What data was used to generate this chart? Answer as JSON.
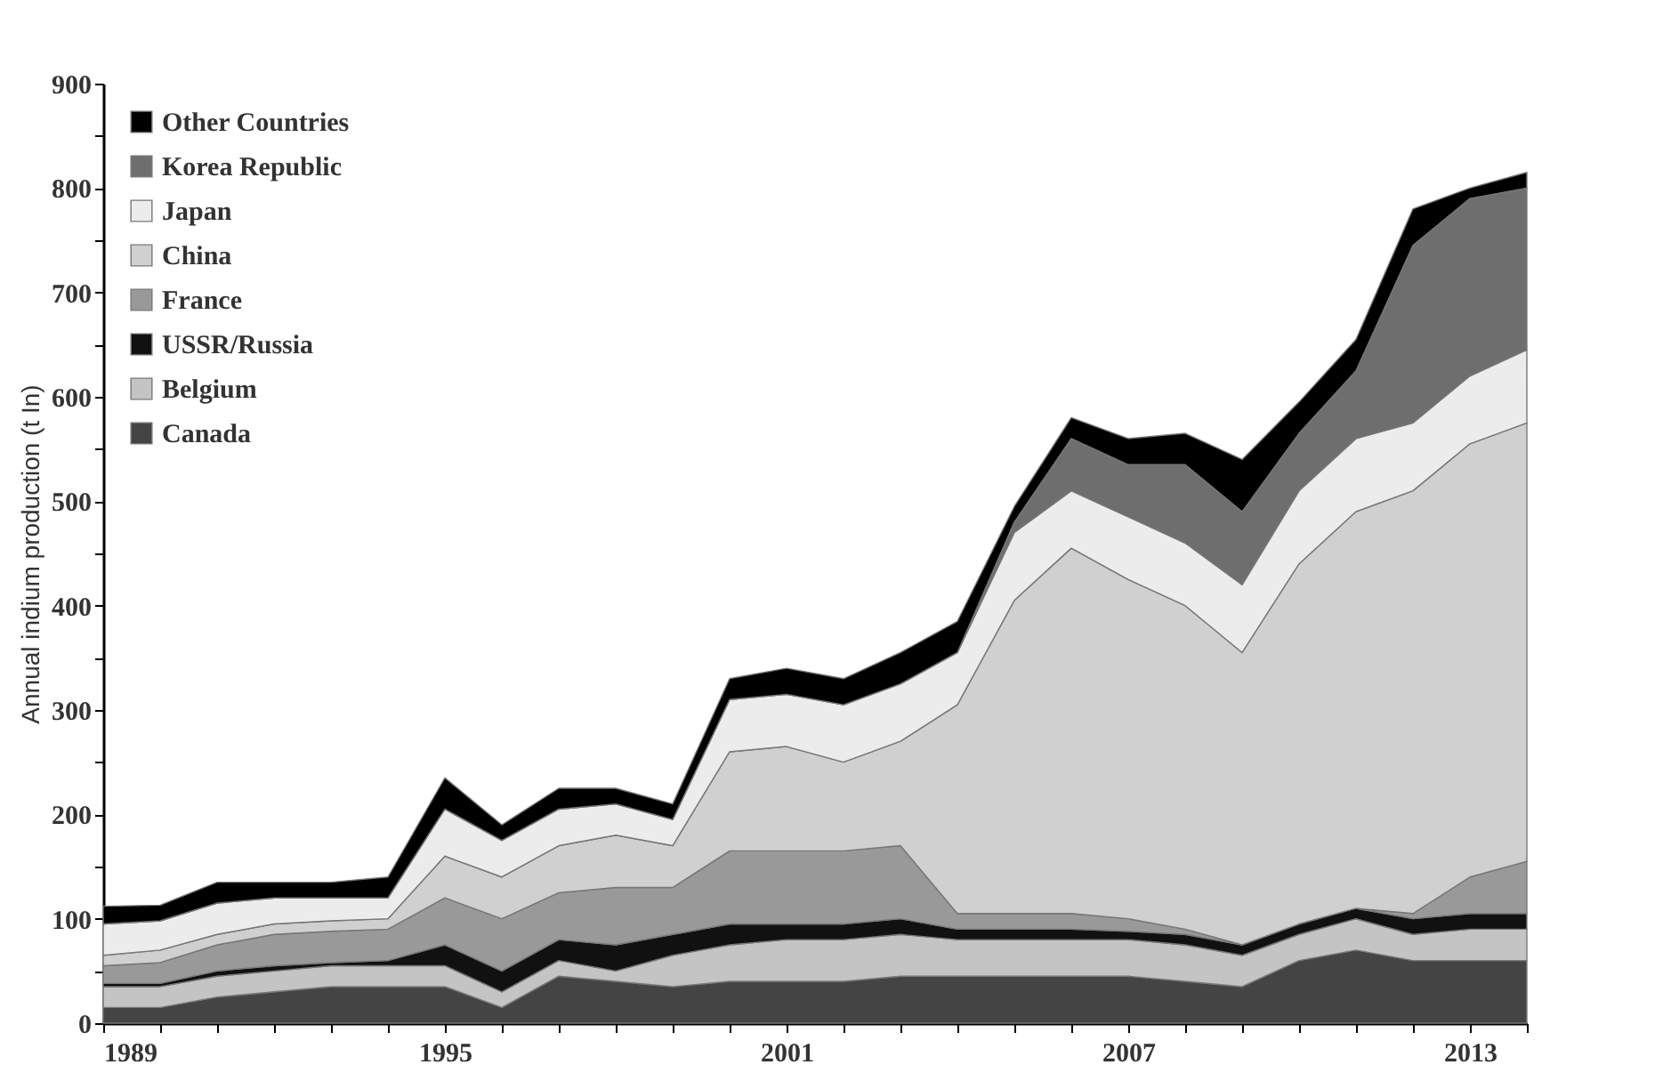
{
  "chart_data": {
    "type": "area",
    "stacked": true,
    "ylabel": "Annual indium production (t In)",
    "x": [
      1989,
      1990,
      1991,
      1992,
      1993,
      1994,
      1995,
      1996,
      1997,
      1998,
      1999,
      2000,
      2001,
      2002,
      2003,
      2004,
      2005,
      2006,
      2007,
      2008,
      2009,
      2010,
      2011,
      2012,
      2013,
      2014
    ],
    "xlim": [
      1989,
      2014
    ],
    "xticks": [
      1989,
      {
        "value": 1990,
        "label": null
      },
      {
        "value": 1991,
        "label": null
      },
      {
        "value": 1992,
        "label": null
      },
      {
        "value": 1993,
        "label": null
      },
      {
        "value": 1994,
        "label": null
      },
      1995,
      {
        "value": 1996,
        "label": null
      },
      {
        "value": 1997,
        "label": null
      },
      {
        "value": 1998,
        "label": null
      },
      {
        "value": 1999,
        "label": null
      },
      {
        "value": 2000,
        "label": null
      },
      2001,
      {
        "value": 2002,
        "label": null
      },
      {
        "value": 2003,
        "label": null
      },
      {
        "value": 2004,
        "label": null
      },
      {
        "value": 2005,
        "label": null
      },
      {
        "value": 2006,
        "label": null
      },
      2007,
      {
        "value": 2008,
        "label": null
      },
      {
        "value": 2009,
        "label": null
      },
      {
        "value": 2010,
        "label": null
      },
      {
        "value": 2011,
        "label": null
      },
      {
        "value": 2012,
        "label": null
      },
      2013,
      {
        "value": 2014,
        "label": null
      }
    ],
    "ylim": [
      0,
      900
    ],
    "yticks": [
      0,
      {
        "value": 50,
        "label": null
      },
      100,
      {
        "value": 150,
        "label": null
      },
      200,
      {
        "value": 250,
        "label": null
      },
      300,
      {
        "value": 350,
        "label": null
      },
      400,
      {
        "value": 450,
        "label": null
      },
      500,
      {
        "value": 550,
        "label": null
      },
      600,
      {
        "value": 650,
        "label": null
      },
      700,
      {
        "value": 750,
        "label": null
      },
      800,
      {
        "value": 850,
        "label": null
      },
      900
    ],
    "legend": "top left",
    "series": [
      {
        "name": "Canada",
        "color": "#444444",
        "values": [
          15,
          15,
          25,
          30,
          35,
          35,
          35,
          15,
          45,
          40,
          35,
          40,
          40,
          40,
          45,
          45,
          45,
          45,
          45,
          40,
          35,
          60,
          70,
          60,
          60,
          60
        ]
      },
      {
        "name": "Belgium",
        "color": "#c4c4c4",
        "values": [
          20,
          20,
          20,
          20,
          20,
          20,
          20,
          15,
          15,
          10,
          30,
          35,
          40,
          40,
          40,
          35,
          35,
          35,
          35,
          35,
          30,
          25,
          30,
          25,
          30,
          30
        ]
      },
      {
        "name": "USSR/Russia",
        "color": "#111111",
        "values": [
          3,
          3,
          5,
          5,
          3,
          5,
          20,
          20,
          20,
          25,
          20,
          20,
          15,
          15,
          15,
          10,
          10,
          10,
          8,
          10,
          10,
          10,
          10,
          15,
          15,
          15
        ]
      },
      {
        "name": "France",
        "color": "#999999",
        "values": [
          17,
          20,
          25,
          30,
          30,
          30,
          45,
          50,
          45,
          55,
          45,
          70,
          70,
          70,
          70,
          15,
          15,
          15,
          12,
          5,
          0,
          0,
          0,
          5,
          35,
          50
        ]
      },
      {
        "name": "China",
        "color": "#d0d0d0",
        "values": [
          10,
          12,
          10,
          10,
          10,
          10,
          40,
          40,
          45,
          50,
          40,
          95,
          100,
          85,
          100,
          200,
          300,
          350,
          325,
          310,
          280,
          345,
          380,
          405,
          415,
          420
        ]
      },
      {
        "name": "Japan",
        "color": "#ececec",
        "values": [
          30,
          28,
          30,
          25,
          22,
          20,
          45,
          35,
          35,
          30,
          25,
          50,
          50,
          55,
          55,
          50,
          65,
          55,
          60,
          60,
          65,
          70,
          70,
          65,
          65,
          70
        ]
      },
      {
        "name": "Korea Republic",
        "color": "#6e6e6e",
        "values": [
          0,
          0,
          0,
          0,
          0,
          0,
          0,
          0,
          0,
          0,
          0,
          0,
          0,
          0,
          0,
          0,
          10,
          50,
          50,
          75,
          70,
          55,
          65,
          170,
          170,
          155
        ]
      },
      {
        "name": "Other Countries",
        "color": "#000000",
        "values": [
          17,
          15,
          20,
          15,
          15,
          20,
          30,
          15,
          20,
          15,
          15,
          20,
          25,
          25,
          30,
          30,
          15,
          20,
          25,
          30,
          50,
          30,
          30,
          35,
          10,
          15
        ]
      }
    ]
  }
}
